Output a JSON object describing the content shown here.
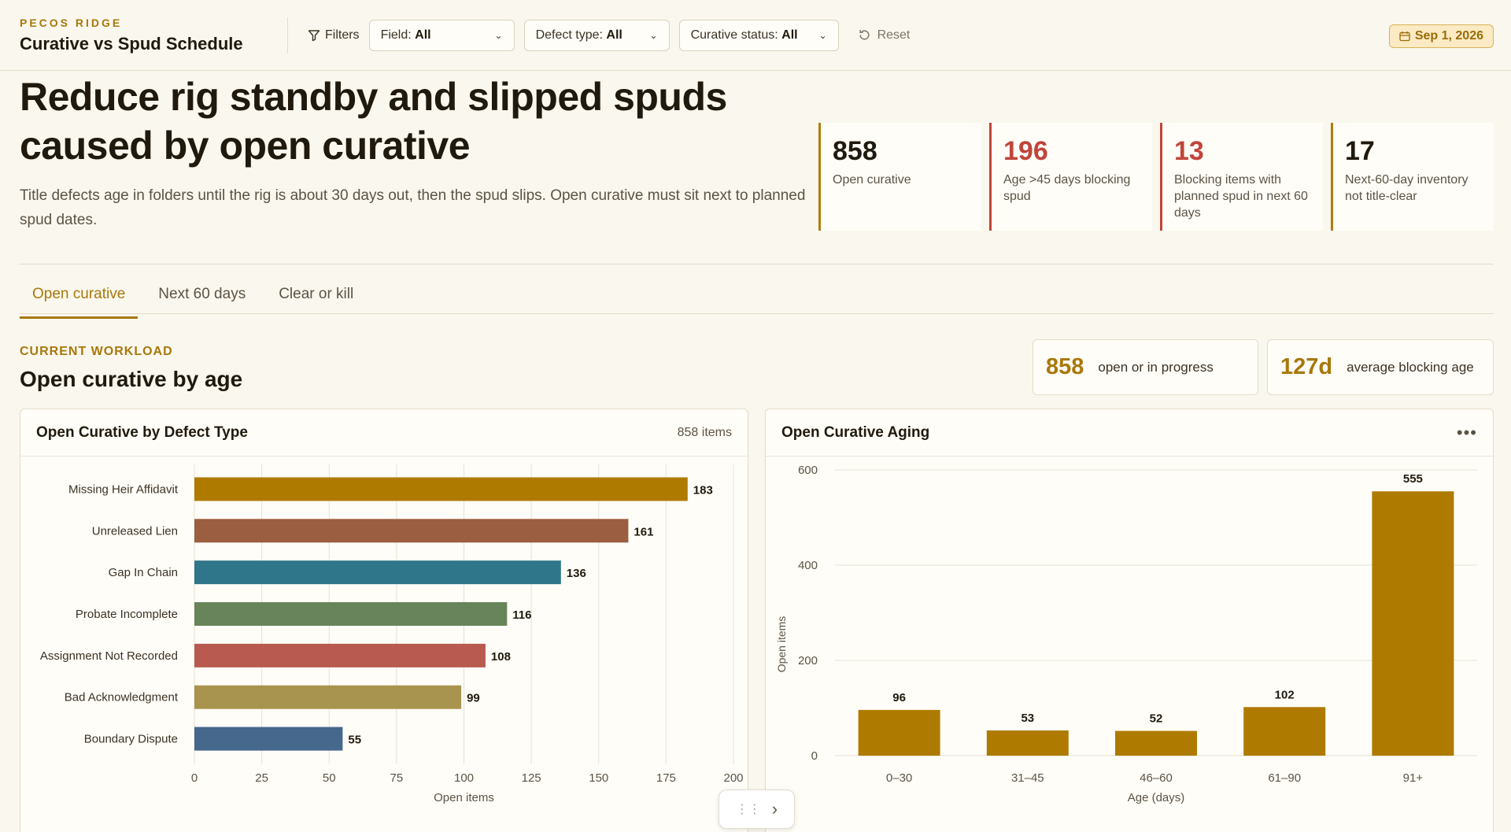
{
  "header": {
    "kicker": "PECOS RIDGE",
    "title": "Curative vs Spud Schedule",
    "filters_label": "Filters",
    "dropdowns": [
      {
        "label": "Field:",
        "value": "All"
      },
      {
        "label": "Defect type:",
        "value": "All"
      },
      {
        "label": "Curative status:",
        "value": "All"
      }
    ],
    "reset_label": "Reset",
    "date": "Sep 1, 2026"
  },
  "hero": {
    "headline": "Reduce rig standby and slipped spuds caused by open curative",
    "subline": "Title defects age in folders until the rig is about 30 days out, then the spud slips. Open curative must sit next to planned spud dates."
  },
  "kpis": [
    {
      "value": "858",
      "label": "Open curative",
      "tone": "neutral"
    },
    {
      "value": "196",
      "label": "Age >45 days blocking spud",
      "tone": "red"
    },
    {
      "value": "13",
      "label": "Blocking items with planned spud in next 60 days",
      "tone": "red"
    },
    {
      "value": "17",
      "label": "Next-60-day inventory not title-clear",
      "tone": "neutral"
    }
  ],
  "tabs": [
    {
      "label": "Open curative",
      "active": true
    },
    {
      "label": "Next 60 days",
      "active": false
    },
    {
      "label": "Clear or kill",
      "active": false
    }
  ],
  "section": {
    "kicker": "CURRENT WORKLOAD",
    "title": "Open curative by age",
    "stats": [
      {
        "value": "858",
        "label": "open or in progress"
      },
      {
        "value": "127d",
        "label": "average blocking age"
      }
    ]
  },
  "panels": {
    "left": {
      "title": "Open Curative by Defect Type",
      "meta": "858 items"
    },
    "right": {
      "title": "Open Curative Aging",
      "meta_icon": "more-horizontal-icon"
    }
  },
  "colors": {
    "accent": "#a8780a",
    "alert": "#c0453a",
    "aging_bar": "#ae7b00"
  },
  "chart_data": [
    {
      "type": "bar",
      "orientation": "horizontal",
      "title": "Open Curative by Defect Type",
      "categories": [
        "Missing Heir Affidavit",
        "Unreleased Lien",
        "Gap In Chain",
        "Probate Incomplete",
        "Assignment Not Recorded",
        "Bad Acknowledgment",
        "Boundary Dispute"
      ],
      "values": [
        183,
        161,
        136,
        116,
        108,
        99,
        55
      ],
      "bar_colors": [
        "#ae7b00",
        "#9b5e41",
        "#2f768a",
        "#68845a",
        "#b85a4f",
        "#a8934f",
        "#45688c"
      ],
      "xlabel": "Open items",
      "xlim": [
        0,
        200
      ],
      "xticks": [
        0,
        25,
        50,
        75,
        100,
        125,
        150,
        175,
        200
      ],
      "grid": true
    },
    {
      "type": "bar",
      "title": "Open Curative Aging",
      "categories": [
        "0–30",
        "31–45",
        "46–60",
        "61–90",
        "91+"
      ],
      "values": [
        96,
        53,
        52,
        102,
        555
      ],
      "xlabel": "Age (days)",
      "ylabel": "Open items",
      "ylim": [
        0,
        600
      ],
      "yticks": [
        0,
        200,
        400,
        600
      ],
      "grid": true
    }
  ]
}
